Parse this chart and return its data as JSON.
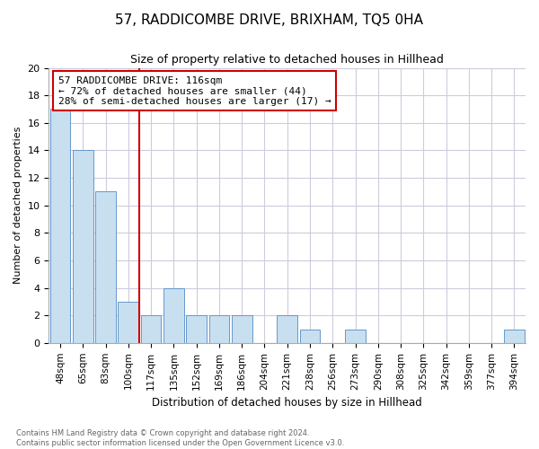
{
  "title_line1": "57, RADDICOMBE DRIVE, BRIXHAM, TQ5 0HA",
  "title_line2": "Size of property relative to detached houses in Hillhead",
  "xlabel": "Distribution of detached houses by size in Hillhead",
  "ylabel": "Number of detached properties",
  "categories": [
    "48sqm",
    "65sqm",
    "83sqm",
    "100sqm",
    "117sqm",
    "135sqm",
    "152sqm",
    "169sqm",
    "186sqm",
    "204sqm",
    "221sqm",
    "238sqm",
    "256sqm",
    "273sqm",
    "290sqm",
    "308sqm",
    "325sqm",
    "342sqm",
    "359sqm",
    "377sqm",
    "394sqm"
  ],
  "values": [
    17,
    14,
    11,
    3,
    2,
    4,
    2,
    2,
    2,
    0,
    2,
    1,
    0,
    1,
    0,
    0,
    0,
    0,
    0,
    0,
    1
  ],
  "bar_color": "#c8dff0",
  "bar_edge_color": "#6699cc",
  "vline_color": "#cc0000",
  "annotation_text": "57 RADDICOMBE DRIVE: 116sqm\n← 72% of detached houses are smaller (44)\n28% of semi-detached houses are larger (17) →",
  "annotation_box_color": "#ffffff",
  "annotation_box_edge": "#cc0000",
  "ylim": [
    0,
    20
  ],
  "yticks": [
    0,
    2,
    4,
    6,
    8,
    10,
    12,
    14,
    16,
    18,
    20
  ],
  "footer_line1": "Contains HM Land Registry data © Crown copyright and database right 2024.",
  "footer_line2": "Contains public sector information licensed under the Open Government Licence v3.0.",
  "grid_color": "#ccccdd",
  "background_color": "#ffffff"
}
